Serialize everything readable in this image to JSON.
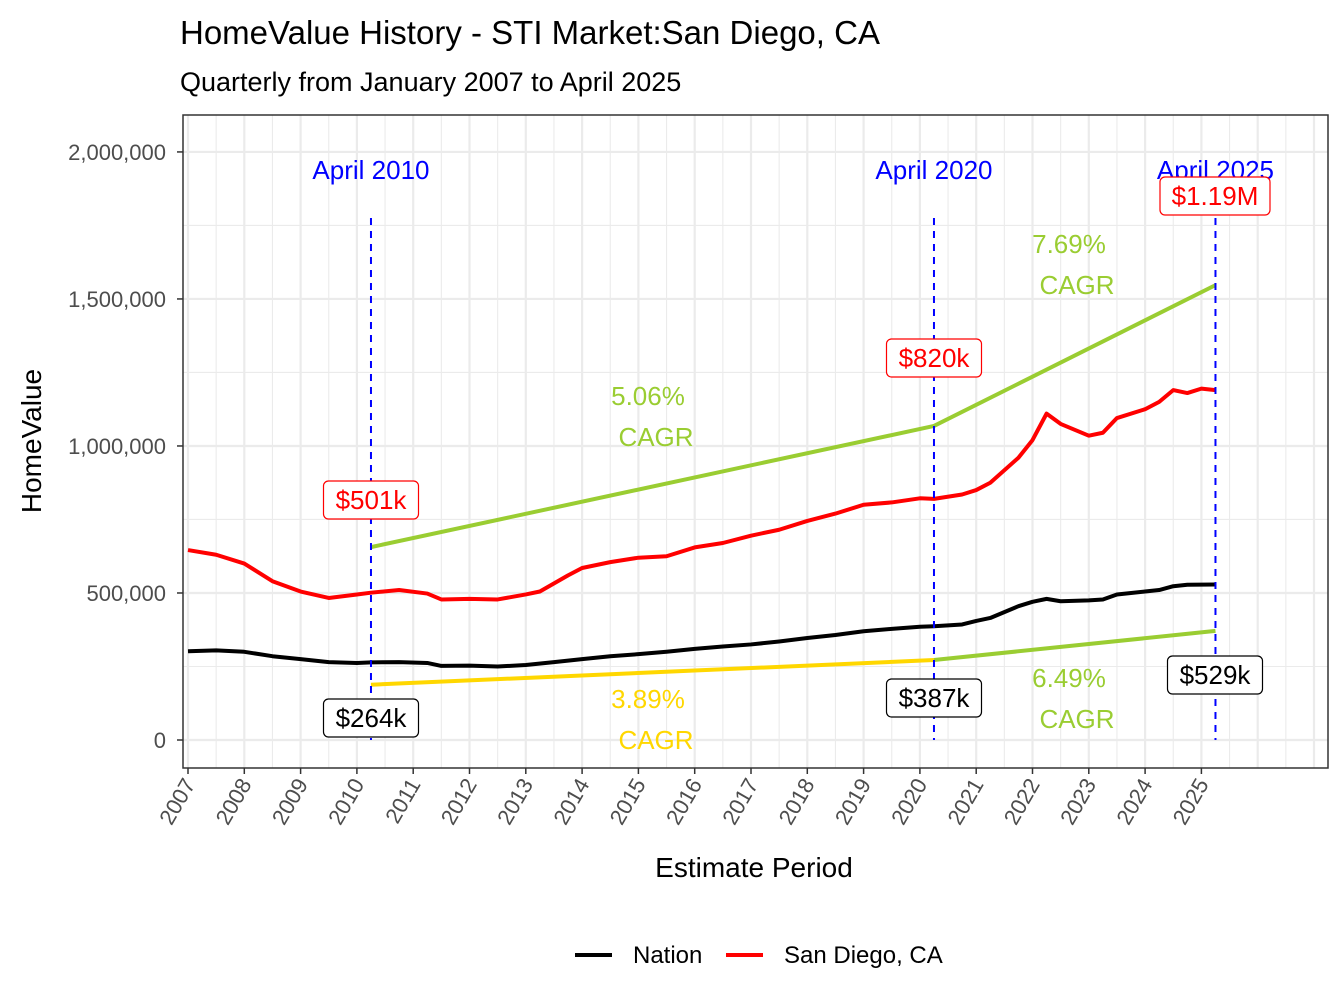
{
  "chart_data": {
    "type": "line",
    "title": "HomeValue History - STI Market:San Diego, CA",
    "subtitle": "Quarterly from January 2007 to April 2025",
    "xlabel": "Estimate Period",
    "ylabel": "HomeValue",
    "xlim": [
      2006.9,
      2027.25
    ],
    "ylim": [
      -95000,
      2126000
    ],
    "x_ticks": [
      "2007",
      "2008",
      "2009",
      "2010",
      "2011",
      "2012",
      "2013",
      "2014",
      "2015",
      "2016",
      "2017",
      "2018",
      "2019",
      "2020",
      "2021",
      "2022",
      "2023",
      "2024",
      "2025"
    ],
    "y_ticks": [
      {
        "value": 0,
        "label": "0"
      },
      {
        "value": 500000,
        "label": "500,000"
      },
      {
        "value": 1000000,
        "label": "1,000,000"
      },
      {
        "value": 1500000,
        "label": "1,500,000"
      },
      {
        "value": 2000000,
        "label": "2,000,000"
      }
    ],
    "grid": true,
    "legend": {
      "position": "bottom",
      "entries": [
        {
          "name": "Nation",
          "color": "#000000"
        },
        {
          "name": "San Diego, CA",
          "color": "#FF0000"
        }
      ]
    },
    "series": [
      {
        "name": "Nation",
        "color": "#000000",
        "points": [
          [
            2007.0,
            302000
          ],
          [
            2007.5,
            305000
          ],
          [
            2008.0,
            300000
          ],
          [
            2008.5,
            285000
          ],
          [
            2009.0,
            275000
          ],
          [
            2009.5,
            265000
          ],
          [
            2010.0,
            262000
          ],
          [
            2010.25,
            264000
          ],
          [
            2010.75,
            265000
          ],
          [
            2011.25,
            262000
          ],
          [
            2011.5,
            252000
          ],
          [
            2012.0,
            253000
          ],
          [
            2012.5,
            250000
          ],
          [
            2013.0,
            255000
          ],
          [
            2013.5,
            265000
          ],
          [
            2014.0,
            275000
          ],
          [
            2014.5,
            285000
          ],
          [
            2015.0,
            292000
          ],
          [
            2015.5,
            300000
          ],
          [
            2016.0,
            310000
          ],
          [
            2016.5,
            318000
          ],
          [
            2017.0,
            325000
          ],
          [
            2017.5,
            335000
          ],
          [
            2018.0,
            347000
          ],
          [
            2018.5,
            357000
          ],
          [
            2019.0,
            370000
          ],
          [
            2019.5,
            378000
          ],
          [
            2020.0,
            385000
          ],
          [
            2020.25,
            387000
          ],
          [
            2020.75,
            393000
          ],
          [
            2021.0,
            405000
          ],
          [
            2021.25,
            415000
          ],
          [
            2021.75,
            455000
          ],
          [
            2022.0,
            470000
          ],
          [
            2022.25,
            480000
          ],
          [
            2022.5,
            472000
          ],
          [
            2023.0,
            475000
          ],
          [
            2023.25,
            478000
          ],
          [
            2023.5,
            495000
          ],
          [
            2024.0,
            505000
          ],
          [
            2024.25,
            510000
          ],
          [
            2024.5,
            523000
          ],
          [
            2024.75,
            528000
          ],
          [
            2025.25,
            529000
          ]
        ]
      },
      {
        "name": "San Diego, CA",
        "color": "#FF0000",
        "points": [
          [
            2007.0,
            646000
          ],
          [
            2007.5,
            630000
          ],
          [
            2008.0,
            600000
          ],
          [
            2008.5,
            540000
          ],
          [
            2009.0,
            505000
          ],
          [
            2009.5,
            483000
          ],
          [
            2010.0,
            495000
          ],
          [
            2010.25,
            501000
          ],
          [
            2010.75,
            510000
          ],
          [
            2011.25,
            498000
          ],
          [
            2011.5,
            478000
          ],
          [
            2012.0,
            480000
          ],
          [
            2012.5,
            478000
          ],
          [
            2013.0,
            495000
          ],
          [
            2013.25,
            505000
          ],
          [
            2013.75,
            560000
          ],
          [
            2014.0,
            585000
          ],
          [
            2014.5,
            605000
          ],
          [
            2015.0,
            620000
          ],
          [
            2015.5,
            625000
          ],
          [
            2016.0,
            655000
          ],
          [
            2016.5,
            670000
          ],
          [
            2017.0,
            695000
          ],
          [
            2017.5,
            715000
          ],
          [
            2018.0,
            745000
          ],
          [
            2018.5,
            770000
          ],
          [
            2019.0,
            800000
          ],
          [
            2019.5,
            808000
          ],
          [
            2020.0,
            822000
          ],
          [
            2020.25,
            820000
          ],
          [
            2020.75,
            835000
          ],
          [
            2021.0,
            850000
          ],
          [
            2021.25,
            875000
          ],
          [
            2021.75,
            960000
          ],
          [
            2022.0,
            1020000
          ],
          [
            2022.25,
            1110000
          ],
          [
            2022.5,
            1075000
          ],
          [
            2023.0,
            1035000
          ],
          [
            2023.25,
            1045000
          ],
          [
            2023.5,
            1095000
          ],
          [
            2024.0,
            1125000
          ],
          [
            2024.25,
            1150000
          ],
          [
            2024.5,
            1190000
          ],
          [
            2024.75,
            1180000
          ],
          [
            2025.0,
            1195000
          ],
          [
            2025.25,
            1190000
          ]
        ]
      }
    ],
    "cagr_lines": [
      {
        "color": "#9ACD32",
        "points": [
          [
            2010.25,
            656000
          ],
          [
            2020.25,
            1068000
          ]
        ],
        "rate": "5.06%",
        "label": "CAGR"
      },
      {
        "color": "#9ACD32",
        "points": [
          [
            2020.25,
            1068000
          ],
          [
            2025.25,
            1547000
          ]
        ],
        "rate": "7.69%",
        "label": "CAGR"
      },
      {
        "color": "#FFD700",
        "points": [
          [
            2010.25,
            188000
          ],
          [
            2020.25,
            272000
          ]
        ],
        "rate": "3.89%",
        "label": "CAGR"
      },
      {
        "color": "#9ACD32",
        "points": [
          [
            2020.25,
            272000
          ],
          [
            2025.25,
            371000
          ]
        ],
        "rate": "6.49%",
        "label": "CAGR"
      }
    ],
    "markers": [
      {
        "date": 2010.25,
        "label": "April 2010",
        "color": "#0000FF"
      },
      {
        "date": 2020.25,
        "label": "April 2020",
        "color": "#0000FF"
      },
      {
        "date": 2025.25,
        "label": "April 2025",
        "color": "#0000FF"
      }
    ],
    "value_labels": [
      {
        "text": "$501k",
        "color": "#FF0000"
      },
      {
        "text": "$264k",
        "color": "#000000"
      },
      {
        "text": "$820k",
        "color": "#FF0000"
      },
      {
        "text": "$387k",
        "color": "#000000"
      },
      {
        "text": "$1.19M",
        "color": "#FF0000"
      },
      {
        "text": "$529k",
        "color": "#000000"
      }
    ]
  }
}
